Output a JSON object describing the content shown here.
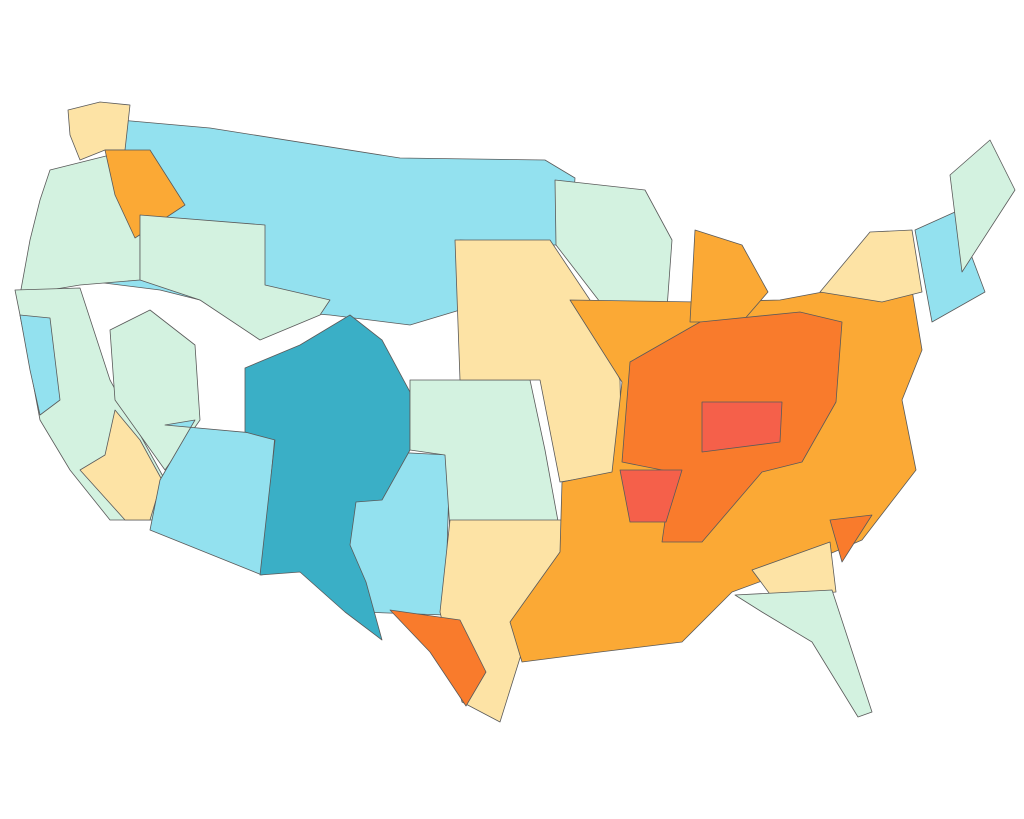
{
  "map": {
    "palette": [
      "#d3f2e0",
      "#93e1ef",
      "#3aafc6",
      "#fde3a5",
      "#fba935",
      "#f97b2c",
      "#f5604a"
    ],
    "border": "#5a5a5a"
  }
}
